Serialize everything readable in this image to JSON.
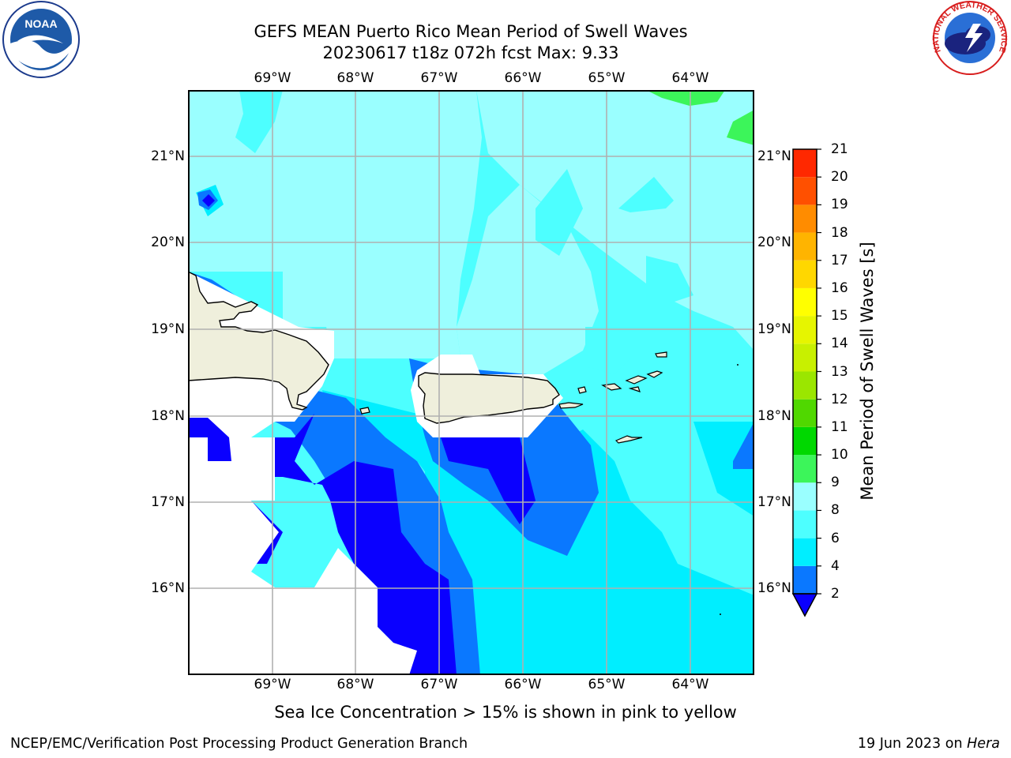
{
  "header": {
    "title_line1": "GEFS MEAN Puerto Rico Mean Period of Swell Waves",
    "title_line2": "20230617 t18z 072h fcst   Max: 9.33"
  },
  "map": {
    "lon_labels": [
      "69°W",
      "68°W",
      "67°W",
      "66°W",
      "65°W",
      "64°W"
    ],
    "lat_labels": [
      "21°N",
      "20°N",
      "19°N",
      "18°N",
      "17°N",
      "16°N"
    ],
    "land_color": "#efefdc",
    "grid_color": "#b0b0b0"
  },
  "colorbar": {
    "label": "Mean Period of Swell Waves [s]",
    "ticks": [
      "2",
      "4",
      "6",
      "8",
      "9",
      "10",
      "11",
      "12",
      "13",
      "14",
      "15",
      "16",
      "17",
      "18",
      "19",
      "20",
      "21"
    ],
    "colors": [
      "#0a00ff",
      "#0a78ff",
      "#00eeff",
      "#4dffff",
      "#9affff",
      "#3cf55a",
      "#00d800",
      "#50d800",
      "#9be600",
      "#c8f000",
      "#e6f500",
      "#ffff00",
      "#ffd700",
      "#ffb400",
      "#ff8c00",
      "#ff5000",
      "#ff2800",
      "#ff0000"
    ]
  },
  "caption": "Sea Ice Concentration > 15% is shown in pink to yellow",
  "footer": {
    "left": "NCEP/EMC/Verification Post Processing Product Generation Branch",
    "right_date": "19 Jun 2023 on",
    "right_host": "Hera"
  },
  "logos": {
    "noaa_text": "NOAA",
    "nws_text": "NATIONAL WEATHER SERVICE"
  }
}
